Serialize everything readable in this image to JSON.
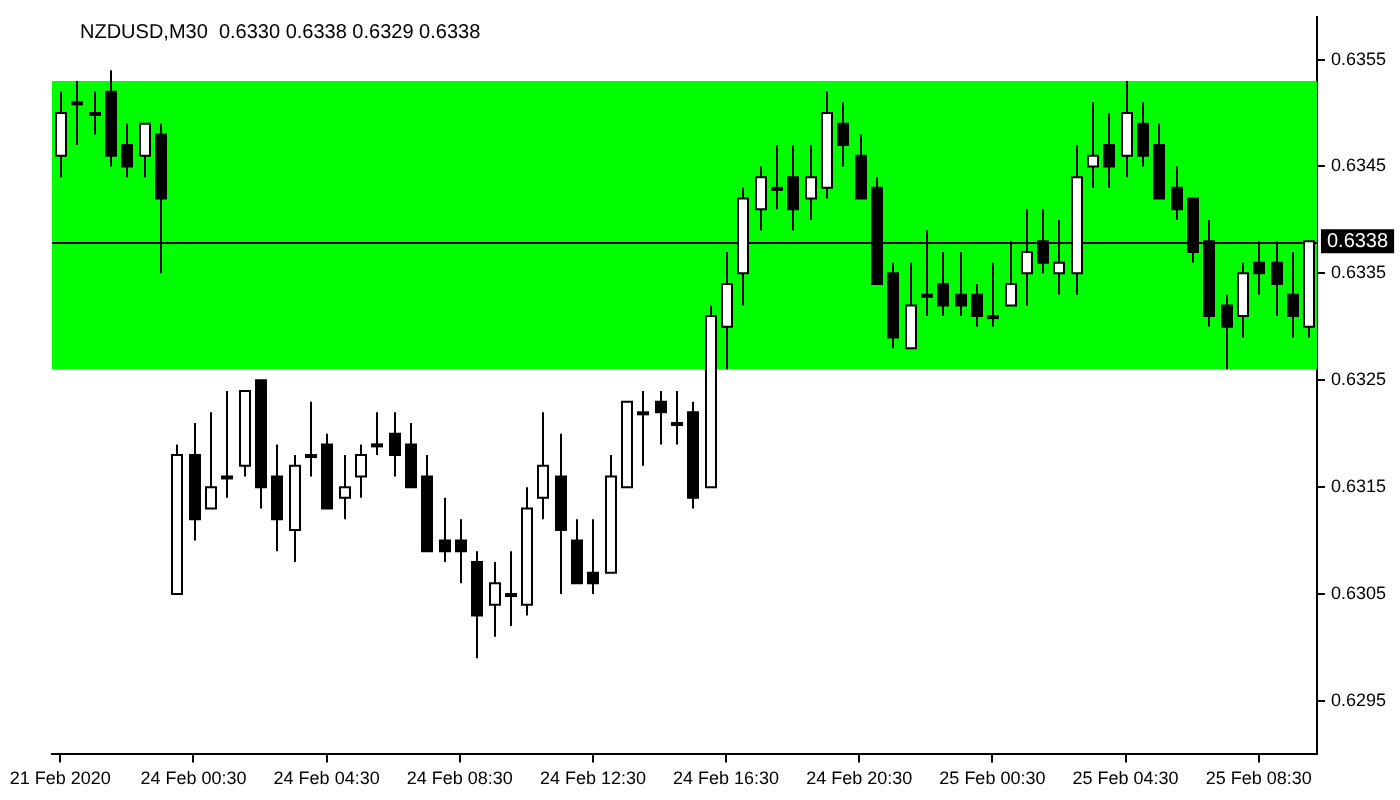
{
  "chart_data": {
    "type": "candlestick",
    "title": "NZDUSD,M30  0.6330 0.6338 0.6329 0.6338",
    "categories": [
      "21 Feb 2020",
      null,
      null,
      null,
      null,
      null,
      null,
      null,
      "24 Feb 00:30",
      null,
      null,
      null,
      null,
      null,
      null,
      null,
      "24 Feb 04:30",
      null,
      null,
      null,
      null,
      null,
      null,
      null,
      "24 Feb 08:30",
      null,
      null,
      null,
      null,
      null,
      null,
      null,
      "24 Feb 12:30",
      null,
      null,
      null,
      null,
      null,
      null,
      null,
      "24 Feb 16:30",
      null,
      null,
      null,
      null,
      null,
      null,
      null,
      "24 Feb 20:30",
      null,
      null,
      null,
      null,
      null,
      null,
      null,
      "25 Feb 00:30",
      null,
      null,
      null,
      null,
      null,
      null,
      null,
      "25 Feb 04:30",
      null,
      null,
      null,
      null,
      null,
      null,
      null,
      "25 Feb 08:30",
      null,
      null,
      null
    ],
    "ohlc": [
      [
        0.6346,
        0.6352,
        0.6344,
        0.635
      ],
      [
        0.6351,
        0.6353,
        0.6347,
        0.6351
      ],
      [
        0.635,
        0.6352,
        0.6348,
        0.635
      ],
      [
        0.6352,
        0.6354,
        0.6345,
        0.6346
      ],
      [
        0.6347,
        0.6349,
        0.6344,
        0.6345
      ],
      [
        0.6346,
        0.6349,
        0.6344,
        0.6349
      ],
      [
        0.6348,
        0.6349,
        0.6335,
        0.6342
      ],
      [
        0.6305,
        0.6319,
        0.6305,
        0.6318
      ],
      [
        0.6318,
        0.6321,
        0.631,
        0.6312
      ],
      [
        0.6313,
        0.6322,
        0.6313,
        0.6315
      ],
      [
        0.6316,
        0.6324,
        0.6314,
        0.6316
      ],
      [
        0.6317,
        0.6324,
        0.6316,
        0.6324
      ],
      [
        0.6325,
        0.6325,
        0.6313,
        0.6315
      ],
      [
        0.6316,
        0.6319,
        0.6309,
        0.6312
      ],
      [
        0.6311,
        0.6318,
        0.6308,
        0.6317
      ],
      [
        0.6318,
        0.6323,
        0.6316,
        0.6318
      ],
      [
        0.6319,
        0.632,
        0.6313,
        0.6313
      ],
      [
        0.6314,
        0.6318,
        0.6312,
        0.6315
      ],
      [
        0.6316,
        0.6319,
        0.6314,
        0.6318
      ],
      [
        0.6319,
        0.6322,
        0.6318,
        0.6319
      ],
      [
        0.632,
        0.6322,
        0.6316,
        0.6318
      ],
      [
        0.6319,
        0.6321,
        0.6315,
        0.6315
      ],
      [
        0.6316,
        0.6318,
        0.6309,
        0.6309
      ],
      [
        0.631,
        0.6314,
        0.6308,
        0.6309
      ],
      [
        0.631,
        0.6312,
        0.6306,
        0.6309
      ],
      [
        0.6308,
        0.6309,
        0.6299,
        0.6303
      ],
      [
        0.6304,
        0.6308,
        0.6301,
        0.6306
      ],
      [
        0.6305,
        0.6309,
        0.6302,
        0.6305
      ],
      [
        0.6304,
        0.6315,
        0.6303,
        0.6313
      ],
      [
        0.6314,
        0.6322,
        0.6312,
        0.6317
      ],
      [
        0.6316,
        0.632,
        0.6305,
        0.6311
      ],
      [
        0.631,
        0.6312,
        0.6306,
        0.6306
      ],
      [
        0.6307,
        0.6312,
        0.6305,
        0.6306
      ],
      [
        0.6307,
        0.6318,
        0.6307,
        0.6316
      ],
      [
        0.6315,
        0.6323,
        0.6315,
        0.6323
      ],
      [
        0.6322,
        0.6324,
        0.6317,
        0.6322
      ],
      [
        0.6323,
        0.6324,
        0.6319,
        0.6322
      ],
      [
        0.6321,
        0.6324,
        0.6319,
        0.6321
      ],
      [
        0.6322,
        0.6323,
        0.6313,
        0.6314
      ],
      [
        0.6315,
        0.6332,
        0.6315,
        0.6331
      ],
      [
        0.633,
        0.6337,
        0.6326,
        0.6334
      ],
      [
        0.6335,
        0.6343,
        0.6332,
        0.6342
      ],
      [
        0.6341,
        0.6345,
        0.6339,
        0.6344
      ],
      [
        0.6343,
        0.6347,
        0.6341,
        0.6343
      ],
      [
        0.6344,
        0.6347,
        0.6339,
        0.6341
      ],
      [
        0.6342,
        0.6347,
        0.634,
        0.6344
      ],
      [
        0.6343,
        0.6352,
        0.6342,
        0.635
      ],
      [
        0.6349,
        0.6351,
        0.6345,
        0.6347
      ],
      [
        0.6346,
        0.6348,
        0.6342,
        0.6342
      ],
      [
        0.6343,
        0.6344,
        0.6334,
        0.6334
      ],
      [
        0.6335,
        0.6336,
        0.6328,
        0.6329
      ],
      [
        0.6328,
        0.6336,
        0.6328,
        0.6332
      ],
      [
        0.6333,
        0.6339,
        0.6331,
        0.6333
      ],
      [
        0.6334,
        0.6337,
        0.6331,
        0.6332
      ],
      [
        0.6333,
        0.6337,
        0.6331,
        0.6332
      ],
      [
        0.6333,
        0.6334,
        0.633,
        0.6331
      ],
      [
        0.6331,
        0.6336,
        0.633,
        0.6331
      ],
      [
        0.6332,
        0.6338,
        0.6332,
        0.6334
      ],
      [
        0.6335,
        0.6341,
        0.6332,
        0.6337
      ],
      [
        0.6338,
        0.6341,
        0.6335,
        0.6336
      ],
      [
        0.6335,
        0.634,
        0.6333,
        0.6336
      ],
      [
        0.6335,
        0.6347,
        0.6333,
        0.6344
      ],
      [
        0.6345,
        0.6351,
        0.6343,
        0.6346
      ],
      [
        0.6347,
        0.635,
        0.6343,
        0.6345
      ],
      [
        0.6346,
        0.6353,
        0.6344,
        0.635
      ],
      [
        0.6349,
        0.6351,
        0.6345,
        0.6346
      ],
      [
        0.6347,
        0.6349,
        0.6342,
        0.6342
      ],
      [
        0.6343,
        0.6345,
        0.634,
        0.6341
      ],
      [
        0.6342,
        0.6342,
        0.6336,
        0.6337
      ],
      [
        0.6338,
        0.634,
        0.633,
        0.6331
      ],
      [
        0.6332,
        0.6333,
        0.6326,
        0.633
      ],
      [
        0.6331,
        0.6336,
        0.6329,
        0.6335
      ],
      [
        0.6336,
        0.6338,
        0.6333,
        0.6335
      ],
      [
        0.6336,
        0.6338,
        0.6331,
        0.6334
      ],
      [
        0.6333,
        0.6337,
        0.6329,
        0.6331
      ],
      [
        0.633,
        0.6338,
        0.6329,
        0.6338
      ]
    ],
    "ylim": [
      0.629,
      0.6359
    ],
    "yticks": [
      0.6295,
      0.6305,
      0.6315,
      0.6325,
      0.6335,
      0.6345,
      0.6355
    ],
    "bands": [
      {
        "axis": "y",
        "from": 0.6326,
        "to": 0.6353,
        "color": "#00ff00"
      }
    ],
    "ref_lines": [
      {
        "axis": "y",
        "value": 0.6338,
        "label": "0.6338",
        "color": "#000000"
      }
    ],
    "grid": false,
    "legend": false
  }
}
